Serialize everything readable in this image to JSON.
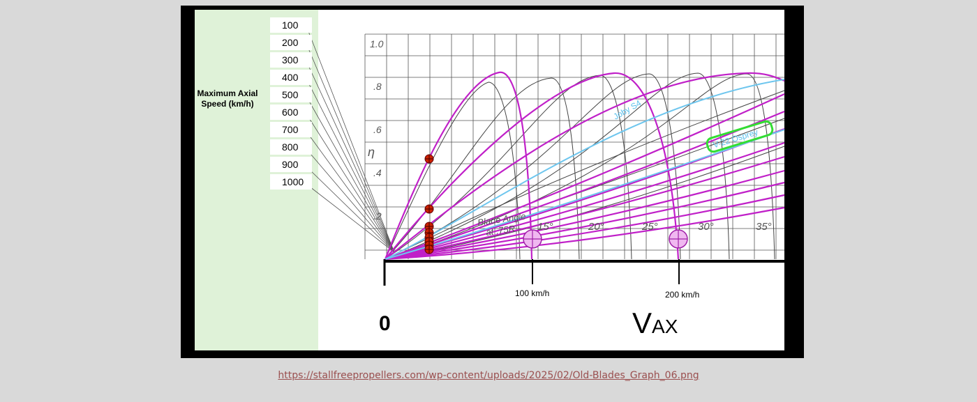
{
  "image": {
    "side_label": [
      "Maximum Axial",
      "Speed (km/h)"
    ],
    "speeds": [
      "100",
      "200",
      "300",
      "400",
      "500",
      "600",
      "700",
      "800",
      "900",
      "1000"
    ],
    "y_labels": [
      "1.0",
      ".8",
      ".6",
      ".4",
      ".2"
    ],
    "y_symbol": "η",
    "angles": [
      "15°",
      "20°",
      "25°",
      "30°",
      "35°"
    ],
    "blade_label": [
      "Blade Angle",
      "at .75R"
    ],
    "curve_labels": [
      "Joby S4",
      "V-22 Osprey"
    ],
    "speed_marks": [
      "100 km/h",
      "200 km/h"
    ],
    "origin": "0",
    "x_label": {
      "main": "V",
      "sub": "AX"
    }
  },
  "link": "https://stallfreepropellers.com/wp-content/uploads/2025/02/Old-Blades_Graph_06.png"
}
